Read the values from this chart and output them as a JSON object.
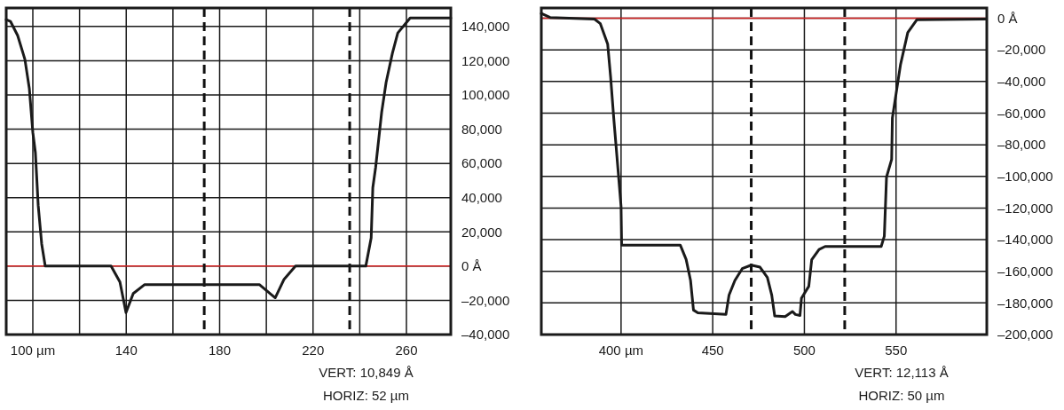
{
  "chart_data": [
    {
      "type": "line",
      "xlim": [
        88.6,
        279
      ],
      "ylim": [
        -40000,
        150800
      ],
      "grid": true,
      "xticks": [
        {
          "value": 100,
          "label": "100 µm"
        },
        {
          "value": 120,
          "label": null
        },
        140,
        {
          "value": 160,
          "label": null
        },
        180,
        {
          "value": 200,
          "label": null
        },
        220,
        {
          "value": 240,
          "label": null
        },
        260
      ],
      "yticks": [
        {
          "value": -40000,
          "label": "–40,000"
        },
        {
          "value": -20000,
          "label": "–20,000"
        },
        {
          "value": 0,
          "label": "0 Å"
        },
        {
          "value": 20000,
          "label": "20,000"
        },
        {
          "value": 40000,
          "label": "40,000"
        },
        {
          "value": 60000,
          "label": "60,000"
        },
        {
          "value": 80000,
          "label": "80,000"
        },
        {
          "value": 100000,
          "label": "100,000"
        },
        {
          "value": 120000,
          "label": "120,000"
        },
        {
          "value": 140000,
          "label": "140,000"
        }
      ],
      "ref_lines": [
        {
          "axis": "y",
          "value": 0,
          "color": "#d42020"
        },
        {
          "axis": "x",
          "value": 173.4,
          "color": "#111111",
          "line_style": "dashed"
        },
        {
          "axis": "x",
          "value": 235.7,
          "color": "#111111",
          "line_style": "dashed"
        }
      ],
      "series": [
        {
          "color": "#1a1a1a",
          "x": [
            88.6,
            90.4,
            93.5,
            96.6,
            98.5,
            100,
            101.1,
            102.3,
            103.8,
            105.3,
            133.5,
            137.3,
            139.9,
            143,
            147.9,
            197,
            203.8,
            207.6,
            212.5,
            242.6,
            244.9,
            245.6,
            246.8,
            249.4,
            251.3,
            254,
            256.3,
            261.6,
            279
          ],
          "values": [
            144000,
            143000,
            134700,
            120800,
            103800,
            78100,
            66300,
            35500,
            12900,
            0,
            0,
            -9300,
            -27200,
            -16000,
            -10800,
            -10800,
            -18500,
            -7700,
            0,
            0,
            16500,
            45800,
            57600,
            90000,
            107400,
            124400,
            136200,
            145000,
            145000
          ]
        }
      ],
      "annotations": [
        "VERT:  10,849 Å",
        "HORIZ:  52 µm"
      ]
    },
    {
      "type": "line",
      "xlim": [
        356.5,
        599.5
      ],
      "ylim": [
        -200000,
        6500
      ],
      "grid": true,
      "xticks": [
        {
          "value": 400,
          "label": "400 µm"
        },
        450,
        500,
        550
      ],
      "yticks": [
        {
          "value": -200000,
          "label": "–200,000"
        },
        {
          "value": -180000,
          "label": "–180,000"
        },
        {
          "value": -160000,
          "label": "–160,000"
        },
        {
          "value": -140000,
          "label": "–140,000"
        },
        {
          "value": -120000,
          "label": "–120,000"
        },
        {
          "value": -100000,
          "label": "–100,000"
        },
        {
          "value": -80000,
          "label": "–80,000"
        },
        {
          "value": -60000,
          "label": "–60,000"
        },
        {
          "value": -40000,
          "label": "–40,000"
        },
        {
          "value": -20000,
          "label": "–20,000"
        },
        {
          "value": 0,
          "label": "0 Å"
        }
      ],
      "ref_lines": [
        {
          "axis": "y",
          "value": 0,
          "color": "#d42020"
        },
        {
          "axis": "x",
          "value": 471,
          "color": "#111111",
          "line_style": "dashed"
        },
        {
          "axis": "x",
          "value": 522,
          "color": "#111111",
          "line_style": "dashed"
        }
      ],
      "series": [
        {
          "color": "#1a1a1a",
          "x": [
            356.5,
            361.3,
            385.5,
            388.7,
            392.7,
            394.3,
            396,
            398.4,
            400,
            400.3,
            432.3,
            435.5,
            437.9,
            439.5,
            441.9,
            457.2,
            458.9,
            462.1,
            466.1,
            471,
            475.8,
            479.8,
            482.2,
            483.8,
            489.5,
            493.5,
            495.1,
            497.6,
            498.4,
            502.4,
            504,
            508,
            511.3,
            541.9,
            543.6,
            544.8,
            547.6,
            548,
            552.4,
            556.4,
            561.3,
            599.2
          ],
          "values": [
            3000,
            500,
            -500,
            -3400,
            -16400,
            -37000,
            -63000,
            -96500,
            -119000,
            -143400,
            -143400,
            -152500,
            -165800,
            -184500,
            -186300,
            -187300,
            -175000,
            -165800,
            -158300,
            -156100,
            -157400,
            -163900,
            -175100,
            -188200,
            -188600,
            -185400,
            -187300,
            -187900,
            -177000,
            -169500,
            -152700,
            -146200,
            -144300,
            -144300,
            -137800,
            -100400,
            -89200,
            -63000,
            -29500,
            -9000,
            -1000,
            -500
          ]
        }
      ],
      "annotations": [
        "VERT:  12,113 Å",
        "HORIZ:  50 µm"
      ]
    }
  ]
}
